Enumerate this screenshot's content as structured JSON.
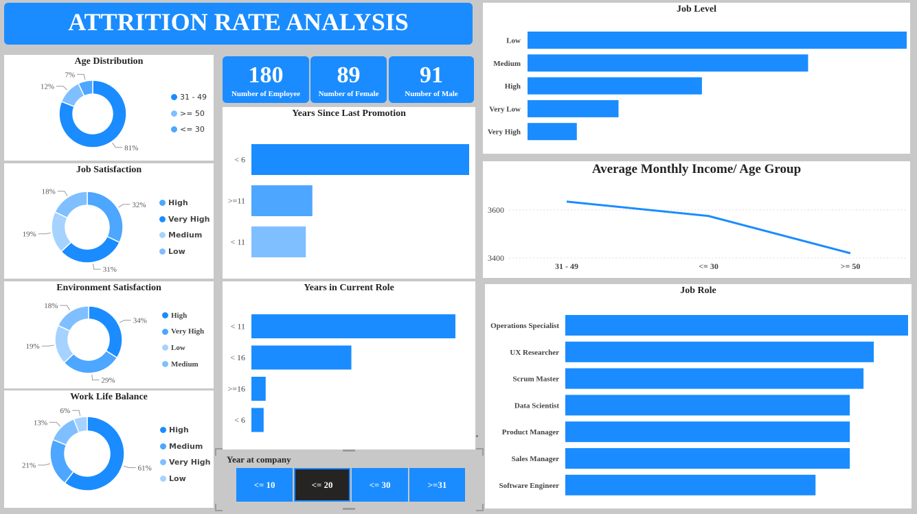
{
  "title": "ATTRITION RATE ANALYSIS",
  "colors": {
    "primary": "#1a8cff",
    "c2": "#4da6ff",
    "c3": "#7fbfff",
    "c4": "#a6d2ff",
    "dark": "#252423",
    "bg": "#c8c8c8"
  },
  "kpis": [
    {
      "value": "180",
      "label": "Number of Employee"
    },
    {
      "value": "89",
      "label": "Number of Female"
    },
    {
      "value": "91",
      "label": "Number of Male"
    }
  ],
  "slicer": {
    "title": "Year at company",
    "options": [
      "<= 10",
      "<= 20",
      "<= 30",
      ">=31"
    ],
    "selected": "<= 20"
  },
  "chart_data": [
    {
      "type": "pie",
      "title": "Age Distribution",
      "categories": [
        "31 - 49",
        ">= 50",
        "<= 30"
      ],
      "values": [
        81,
        12,
        7
      ],
      "labels": [
        "81%",
        "12%",
        "7%"
      ],
      "colors": [
        "#1a8cff",
        "#7fbfff",
        "#4da6ff"
      ],
      "legend_position": "right"
    },
    {
      "type": "pie",
      "title": "Job Satisfaction",
      "categories": [
        "High",
        "Very High",
        "Medium",
        "Low"
      ],
      "values": [
        32,
        31,
        19,
        18
      ],
      "labels": [
        "32%",
        "31%",
        "19%",
        "18%"
      ],
      "colors": [
        "#4da6ff",
        "#1a8cff",
        "#a6d2ff",
        "#7fbfff"
      ],
      "legend_position": "right"
    },
    {
      "type": "pie",
      "title": "Environment Satisfaction",
      "categories": [
        "High",
        "Very High",
        "Low",
        "Medium"
      ],
      "values": [
        34,
        29,
        19,
        18
      ],
      "labels": [
        "34%",
        "29%",
        "19%",
        "18%"
      ],
      "colors": [
        "#1a8cff",
        "#4da6ff",
        "#a6d2ff",
        "#7fbfff"
      ],
      "legend_position": "right"
    },
    {
      "type": "pie",
      "title": "Work Life Balance",
      "categories": [
        "High",
        "Medium",
        "Very High",
        "Low"
      ],
      "values": [
        61,
        21,
        13,
        6
      ],
      "labels": [
        "61%",
        "21%",
        "13%",
        "6%"
      ],
      "colors": [
        "#1a8cff",
        "#4da6ff",
        "#7fbfff",
        "#a6d2ff"
      ],
      "legend_position": "right"
    },
    {
      "type": "bar",
      "orientation": "horizontal",
      "title": "Years Since Last Promotion",
      "categories": [
        "< 6",
        ">=11",
        "< 11"
      ],
      "values": [
        100,
        28,
        25
      ],
      "colors": [
        "#1a8cff",
        "#4da6ff",
        "#7fbfff"
      ]
    },
    {
      "type": "bar",
      "orientation": "horizontal",
      "title": "Years in Current Role",
      "categories": [
        "< 11",
        "< 16",
        ">=16",
        "< 6"
      ],
      "values": [
        100,
        49,
        7,
        6
      ],
      "colors": [
        "#1a8cff",
        "#1a8cff",
        "#1a8cff",
        "#1a8cff"
      ]
    },
    {
      "type": "bar",
      "orientation": "horizontal",
      "title": "Job Level",
      "categories": [
        "Low",
        "Medium",
        "High",
        "Very Low",
        "Very High"
      ],
      "values": [
        100,
        74,
        46,
        24,
        13
      ],
      "colors": [
        "#1a8cff",
        "#1a8cff",
        "#1a8cff",
        "#1a8cff",
        "#1a8cff"
      ]
    },
    {
      "type": "line",
      "title": "Average Monthly Income/ Age Group",
      "categories": [
        "31 - 49",
        "<= 30",
        ">= 50"
      ],
      "values": [
        3635,
        3575,
        3420
      ],
      "yticks": [
        "3600",
        "3400"
      ],
      "ylim": [
        3400,
        3600
      ],
      "color": "#1a8cff",
      "grid": true
    },
    {
      "type": "bar",
      "orientation": "horizontal",
      "title": "Job Role",
      "categories": [
        "Operations Specialist",
        "UX Researcher",
        "Scrum Master",
        "Data Scientist",
        "Product Manager",
        "Sales Manager",
        "Software Engineer"
      ],
      "values": [
        100,
        90,
        87,
        83,
        83,
        83,
        73
      ],
      "colors": [
        "#1a8cff",
        "#1a8cff",
        "#1a8cff",
        "#1a8cff",
        "#1a8cff",
        "#1a8cff",
        "#1a8cff"
      ]
    }
  ]
}
